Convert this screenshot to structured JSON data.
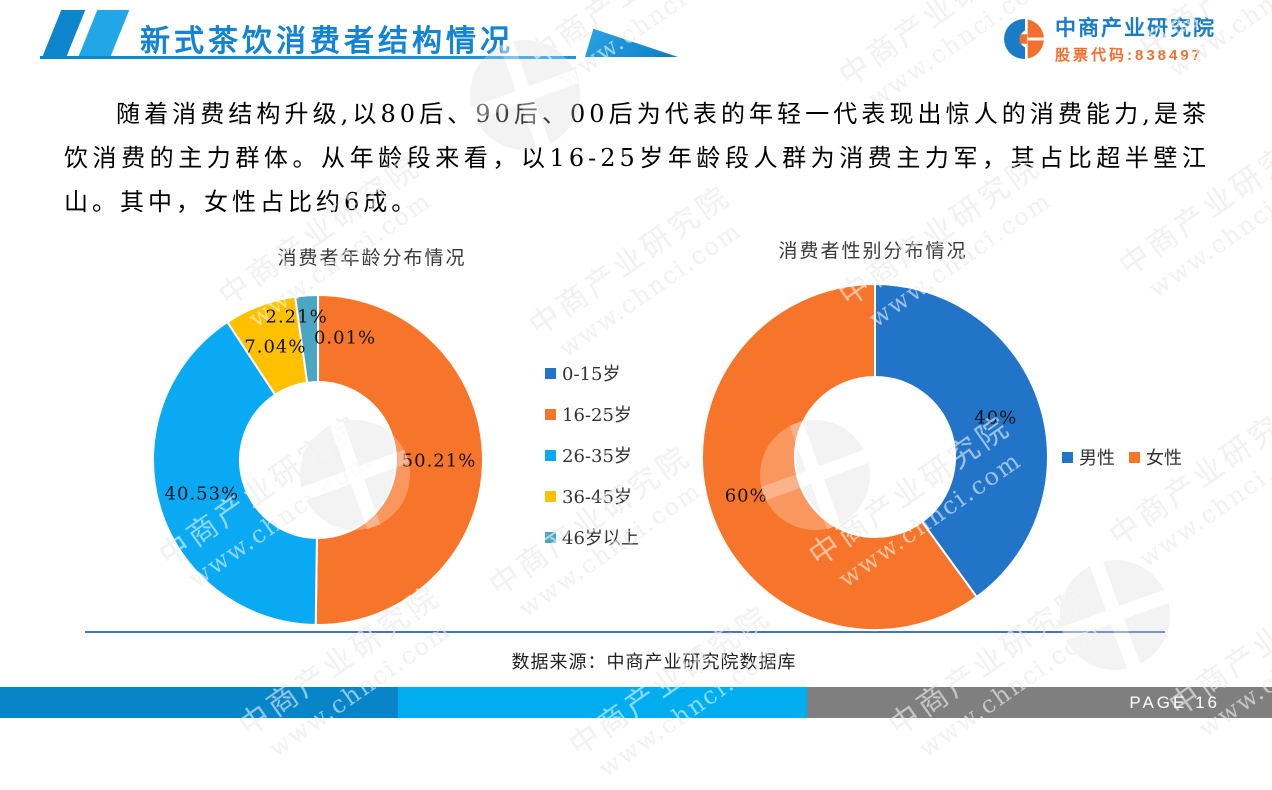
{
  "header": {
    "title": "新式茶饮消费者结构情况",
    "logo_name": "中商产业研究院",
    "logo_stock": "股票代码:838497"
  },
  "body_text": "随着消费结构升级,以80后、90后、00后为代表的年轻一代表现出惊人的消费能力,是茶饮消费的主力群体。从年龄段来看，以16-25岁年龄段人群为消费主力军，其占比超半壁江山。其中，女性占比约6成。",
  "chart_data": [
    {
      "type": "pie",
      "subtype": "donut",
      "title": "消费者年龄分布情况",
      "categories": [
        "0-15岁",
        "16-25岁",
        "26-35岁",
        "36-45岁",
        "46岁以上"
      ],
      "values": [
        0.01,
        50.21,
        40.53,
        7.04,
        2.21
      ],
      "labels": [
        "0.01%",
        "50.21%",
        "40.53%",
        "7.04%",
        "2.21%"
      ],
      "colors": [
        "#2274C8",
        "#F7752B",
        "#0AA9F4",
        "#FFC000",
        "#4BA6C3"
      ],
      "legend_position": "right",
      "legend_layout": "vertical",
      "start_angle_deg": 0,
      "direction": "clockwise"
    },
    {
      "type": "pie",
      "subtype": "donut",
      "title": "消费者性别分布情况",
      "categories": [
        "男性",
        "女性"
      ],
      "values": [
        40,
        60
      ],
      "labels": [
        "40%",
        "60%"
      ],
      "colors": [
        "#2274C8",
        "#F7752B"
      ],
      "legend_position": "right",
      "legend_layout": "horizontal",
      "start_angle_deg": 0,
      "direction": "clockwise"
    }
  ],
  "source": "数据来源：中商产业研究院数据库",
  "footer": {
    "page_label": "PAGE  16"
  },
  "watermark": {
    "line1": "中商产业研究院",
    "line2": "www.chnci.com"
  },
  "colors": {
    "title_blue": "#1283D6",
    "header_para_blue": "#0D85CC",
    "header_para_cyan": "#21A6E8",
    "logo_blue": "#1A7CC6",
    "logo_orange": "#F26F2E",
    "rule_blue": "#4472C4",
    "footer_dark_blue": "#0884C8",
    "footer_cyan": "#00AEEF",
    "footer_gray": "#7F7F7F"
  }
}
